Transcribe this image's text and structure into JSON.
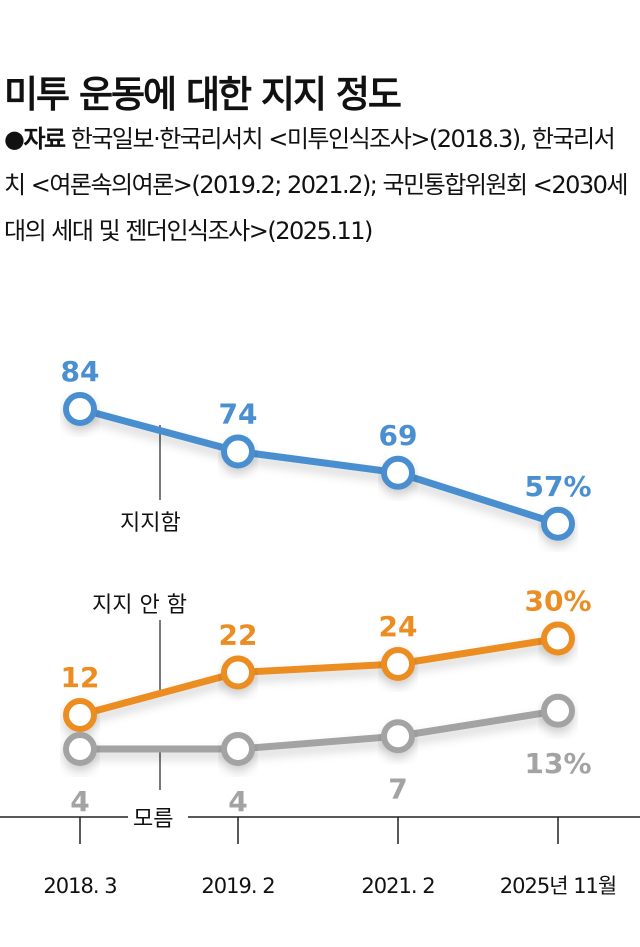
{
  "title": "미투 운동에 대한 지지 정도",
  "source": {
    "bullet": "●자료",
    "text": "한국일보·한국리서치 <미투인식조사>(2018.3), 한국리서치 <여론속의여론>(2019.2; 2021.2); 국민통합위원회 <2030세대의 세대 및 젠더인식조사>(2025.11)"
  },
  "chart_data": {
    "type": "line",
    "categories": [
      "2018. 3",
      "2019. 2",
      "2021. 2",
      "2025년 11월"
    ],
    "unit": "%",
    "grid": false,
    "series": [
      {
        "name": "지지함",
        "color": "#4a8fd0",
        "values": [
          84,
          74,
          69,
          57
        ],
        "labels": [
          "84",
          "74",
          "69",
          "57%"
        ]
      },
      {
        "name": "지지 안 함",
        "color": "#ec8d24",
        "values": [
          12,
          22,
          24,
          30
        ],
        "labels": [
          "12",
          "22",
          "24",
          "30%"
        ]
      },
      {
        "name": "모름",
        "color": "#a3a3a3",
        "values": [
          4,
          4,
          7,
          13
        ],
        "labels": [
          "4",
          "4",
          "7",
          "13%"
        ]
      }
    ]
  }
}
